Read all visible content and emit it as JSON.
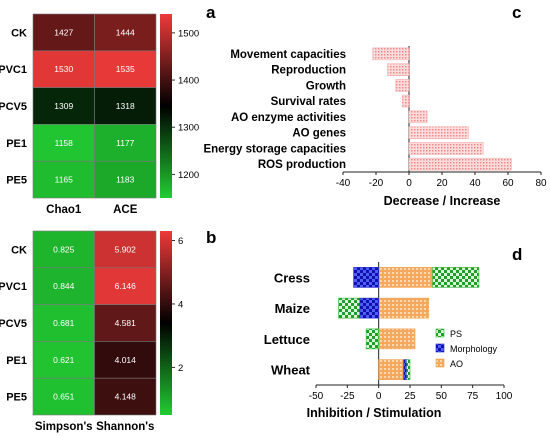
{
  "panels": {
    "a": "a",
    "b": "b",
    "c": "c",
    "d": "d"
  },
  "chart_data": [
    {
      "panel": "a",
      "type": "heatmap",
      "rows": [
        "CK",
        "PVC1",
        "PCV5",
        "PE1",
        "PE5"
      ],
      "columns": [
        "Chao1",
        "ACE"
      ],
      "values": [
        [
          1427,
          1444
        ],
        [
          1530,
          1535
        ],
        [
          1309,
          1318
        ],
        [
          1158,
          1177
        ],
        [
          1165,
          1183
        ]
      ],
      "colorbar": {
        "ticks": [
          1200,
          1300,
          1400,
          1500
        ],
        "range": [
          1150,
          1540
        ]
      },
      "colors": {
        "low": "#22cc33",
        "mid": "#000000",
        "high": "#ee3a3a"
      }
    },
    {
      "panel": "b",
      "type": "heatmap",
      "rows": [
        "CK",
        "PVC1",
        "PCV5",
        "PE1",
        "PE5"
      ],
      "columns": [
        "Simpson's",
        "Shannon's"
      ],
      "values": [
        [
          0.825,
          5.902
        ],
        [
          0.844,
          6.146
        ],
        [
          0.681,
          4.581
        ],
        [
          0.621,
          4.014
        ],
        [
          0.651,
          4.148
        ]
      ],
      "colorbar": {
        "ticks": [
          2,
          4,
          6
        ],
        "range": [
          0.5,
          6.3
        ]
      },
      "colors": {
        "low": "#22cc33",
        "mid": "#000000",
        "high": "#ee3a3a"
      }
    },
    {
      "panel": "c",
      "type": "bar",
      "orientation": "horizontal",
      "categories": [
        "Movement capacities",
        "Reproduction",
        "Growth",
        "Survival rates",
        "AO enzyme activities",
        "AO genes",
        "Energy storage capacities",
        "ROS production"
      ],
      "values": [
        -22,
        -13,
        -8,
        -4,
        11,
        36,
        45,
        62
      ],
      "xlabel": "Decrease /  Increase",
      "xlim": [
        -40,
        80
      ],
      "xticks": [
        -40,
        -20,
        0,
        20,
        40,
        60,
        80
      ],
      "bar_color": "#f6bcbc"
    },
    {
      "panel": "d",
      "type": "bar",
      "orientation": "horizontal",
      "stacked": true,
      "categories": [
        "Cress",
        "Maize",
        "Lettuce",
        "Wheat"
      ],
      "series": [
        {
          "name": "PS",
          "values": [
            [
              43,
              80
            ],
            [
              -32,
              -15
            ],
            [
              -10,
              0
            ],
            [
              22,
              25
            ]
          ],
          "color": "#2eb82e"
        },
        {
          "name": "Morphology",
          "values": [
            [
              -20,
              0
            ],
            [
              -15,
              0
            ],
            null,
            [
              20,
              22
            ]
          ],
          "color": "#1e22c8"
        },
        {
          "name": "AO",
          "values": [
            [
              0,
              43
            ],
            [
              0,
              40
            ],
            [
              0,
              29
            ],
            [
              0,
              20
            ]
          ],
          "color": "#f0a050"
        }
      ],
      "xlabel": "Inhibition / Stimulation",
      "xlim": [
        -50,
        100
      ],
      "xticks": [
        -50,
        -25,
        0,
        25,
        50,
        75,
        100
      ],
      "legend": "right"
    }
  ]
}
